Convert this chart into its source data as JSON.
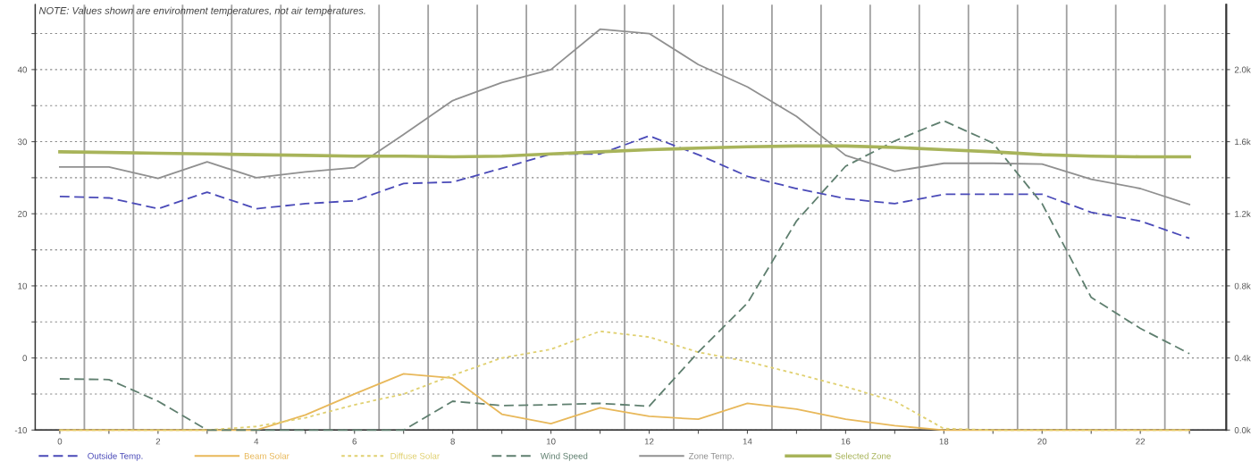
{
  "chart_data": {
    "type": "line",
    "x": [
      0,
      1,
      2,
      3,
      4,
      5,
      6,
      7,
      8,
      9,
      10,
      11,
      12,
      13,
      14,
      15,
      16,
      17,
      18,
      19,
      20,
      21,
      22,
      23
    ],
    "series": [
      {
        "name": "Outside Temp.",
        "color": "#4a4ab8",
        "line_style": "dashed",
        "values": [
          22.4,
          22.2,
          20.7,
          23.0,
          20.7,
          21.4,
          21.8,
          24.2,
          24.4,
          26.3,
          28.3,
          28.3,
          30.8,
          28.2,
          25.2,
          23.5,
          22.1,
          21.4,
          22.7,
          22.7,
          22.7,
          20.2,
          19.0,
          16.6
        ]
      },
      {
        "name": "Beam Solar",
        "color": "#e8b85a",
        "line_style": "solid",
        "values": [
          -10,
          -10,
          -10,
          -10,
          -10,
          -7.9,
          -5,
          -2.2,
          -2.8,
          -7.8,
          -9.1,
          -6.9,
          -8.1,
          -8.5,
          -6.3,
          -7.1,
          -8.5,
          -9.4,
          -10,
          -10,
          -10,
          -10,
          -10,
          -10
        ]
      },
      {
        "name": "Diffuse Solar",
        "color": "#e0d070",
        "line_style": "dotted",
        "values": [
          -10,
          -10,
          -10,
          -10,
          -9.5,
          -8.3,
          -6.5,
          -5,
          -2.4,
          0,
          1.2,
          3.7,
          2.9,
          0.8,
          -0.5,
          -2.2,
          -4,
          -6,
          -9.8,
          -10,
          -10,
          -10,
          -10,
          -10
        ]
      },
      {
        "name": "Wind Speed",
        "color": "#5f7f6f",
        "line_style": "dashed",
        "values": [
          -2.9,
          -3.0,
          -6,
          -10,
          -10,
          -10,
          -10,
          -10,
          -6,
          -6.6,
          -6.5,
          -6.3,
          -6.7,
          0.8,
          7.6,
          19,
          26.6,
          30.1,
          32.9,
          29.8,
          21.4,
          8.4,
          4.1,
          0.6
        ]
      },
      {
        "name": "Zone Temp.",
        "color": "#909090",
        "line_style": "solid",
        "values": [
          26.5,
          26.5,
          24.9,
          27.2,
          25.0,
          25.8,
          26.4,
          31,
          35.7,
          38.2,
          40,
          45.6,
          45,
          40.7,
          37.6,
          33.5,
          28.1,
          25.9,
          27,
          27,
          26.9,
          24.8,
          23.5,
          21.3
        ]
      },
      {
        "name": "Selected Zone",
        "color": "#a8b45a",
        "line_style": "solid",
        "values": [
          28.6,
          28.5,
          28.4,
          28.3,
          28.2,
          28.1,
          28.0,
          28.0,
          27.9,
          28.0,
          28.3,
          28.6,
          28.9,
          29.1,
          29.3,
          29.4,
          29.4,
          29.2,
          28.9,
          28.6,
          28.2,
          28.0,
          27.9,
          27.9
        ]
      }
    ],
    "xlim": [
      -0.5,
      23.75
    ],
    "xticks": [
      0,
      {
        "value": 1,
        "label": null
      },
      2,
      {
        "value": 3,
        "label": null
      },
      4,
      {
        "value": 5,
        "label": null
      },
      6,
      {
        "value": 7,
        "label": null
      },
      8,
      {
        "value": 9,
        "label": null
      },
      10,
      {
        "value": 11,
        "label": null
      },
      12,
      {
        "value": 13,
        "label": null
      },
      14,
      {
        "value": 15,
        "label": null
      },
      16,
      {
        "value": 17,
        "label": null
      },
      18,
      {
        "value": 19,
        "label": null
      },
      20,
      {
        "value": 21,
        "label": null
      },
      22,
      {
        "value": 23,
        "label": null
      }
    ],
    "ylim": [
      -10,
      49
    ],
    "yticks": [
      -10,
      {
        "value": -5,
        "label": null
      },
      0,
      {
        "value": 5,
        "label": null
      },
      10,
      {
        "value": 15,
        "label": null
      },
      20,
      {
        "value": 25,
        "label": null
      },
      30,
      {
        "value": 35,
        "label": null
      },
      40,
      {
        "value": 45,
        "label": null
      }
    ],
    "y2lim": [
      0,
      2360
    ],
    "y2ticks": [
      {
        "value": 0,
        "label": "0.0k"
      },
      {
        "value": 200,
        "label": null
      },
      {
        "value": 400,
        "label": "0.4k"
      },
      {
        "value": 600,
        "label": null
      },
      {
        "value": 800,
        "label": "0.8k"
      },
      {
        "value": 1000,
        "label": null
      },
      {
        "value": 1200,
        "label": "1.2k"
      },
      {
        "value": 1400,
        "label": null
      },
      {
        "value": 1600,
        "label": "1.6k"
      },
      {
        "value": 1800,
        "label": null
      },
      {
        "value": 2000,
        "label": "2.0k"
      },
      {
        "value": 2200,
        "label": null
      }
    ],
    "grid": "y",
    "ref_lines": [
      {
        "axis": "x",
        "value": 0.5,
        "color": "#a0a0a0"
      },
      {
        "axis": "x",
        "value": 1.5,
        "color": "#a0a0a0"
      },
      {
        "axis": "x",
        "value": 2.5,
        "color": "#a0a0a0"
      },
      {
        "axis": "x",
        "value": 3.5,
        "color": "#a0a0a0"
      },
      {
        "axis": "x",
        "value": 4.5,
        "color": "#a0a0a0"
      },
      {
        "axis": "x",
        "value": 5.5,
        "color": "#a0a0a0"
      },
      {
        "axis": "x",
        "value": 6.5,
        "color": "#a0a0a0"
      },
      {
        "axis": "x",
        "value": 7.5,
        "color": "#a0a0a0"
      },
      {
        "axis": "x",
        "value": 8.5,
        "color": "#a0a0a0"
      },
      {
        "axis": "x",
        "value": 9.5,
        "color": "#a0a0a0"
      },
      {
        "axis": "x",
        "value": 10.5,
        "color": "#a0a0a0"
      },
      {
        "axis": "x",
        "value": 11.5,
        "color": "#a0a0a0"
      },
      {
        "axis": "x",
        "value": 12.5,
        "color": "#a0a0a0"
      },
      {
        "axis": "x",
        "value": 13.5,
        "color": "#a0a0a0"
      },
      {
        "axis": "x",
        "value": 14.5,
        "color": "#a0a0a0"
      },
      {
        "axis": "x",
        "value": 15.5,
        "color": "#a0a0a0"
      },
      {
        "axis": "x",
        "value": 16.5,
        "color": "#a0a0a0"
      },
      {
        "axis": "x",
        "value": 17.5,
        "color": "#a0a0a0"
      },
      {
        "axis": "x",
        "value": 18.5,
        "color": "#a0a0a0"
      },
      {
        "axis": "x",
        "value": 19.5,
        "color": "#a0a0a0"
      },
      {
        "axis": "x",
        "value": 20.5,
        "color": "#a0a0a0"
      },
      {
        "axis": "x",
        "value": 21.5,
        "color": "#a0a0a0"
      },
      {
        "axis": "x",
        "value": 22.5,
        "color": "#a0a0a0"
      }
    ],
    "annotations": [
      "NOTE: Values shown are environment temperatures, not air temperatures."
    ],
    "legend": "bottom",
    "marker": "none"
  }
}
